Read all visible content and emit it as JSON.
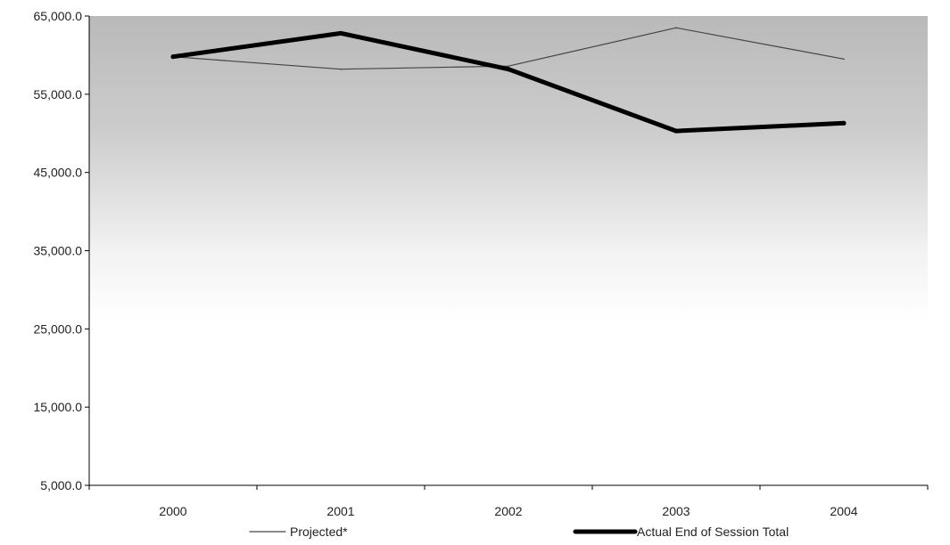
{
  "chart_data": {
    "type": "line",
    "title": "",
    "xlabel": "",
    "ylabel": "",
    "categories": [
      "2000",
      "2001",
      "2002",
      "2003",
      "2004"
    ],
    "ylim": [
      5000,
      65000
    ],
    "yticks": [
      5000,
      15000,
      25000,
      35000,
      45000,
      55000,
      65000
    ],
    "ytick_labels": [
      "5,000.0",
      "15,000.0",
      "25,000.0",
      "35,000.0",
      "45,000.0",
      "55,000.0",
      "65,000.0"
    ],
    "series": [
      {
        "name": "Projected*",
        "values": [
          59800,
          58200,
          58600,
          63500,
          59500
        ],
        "color": "#444444",
        "style": "thin"
      },
      {
        "name": "Actual End of Session Total",
        "values": [
          59800,
          62800,
          58200,
          50300,
          51300
        ],
        "color": "#000000",
        "style": "thick"
      }
    ],
    "legend_position": "bottom",
    "grid": false,
    "plot_background": "gradient gray-to-white"
  }
}
